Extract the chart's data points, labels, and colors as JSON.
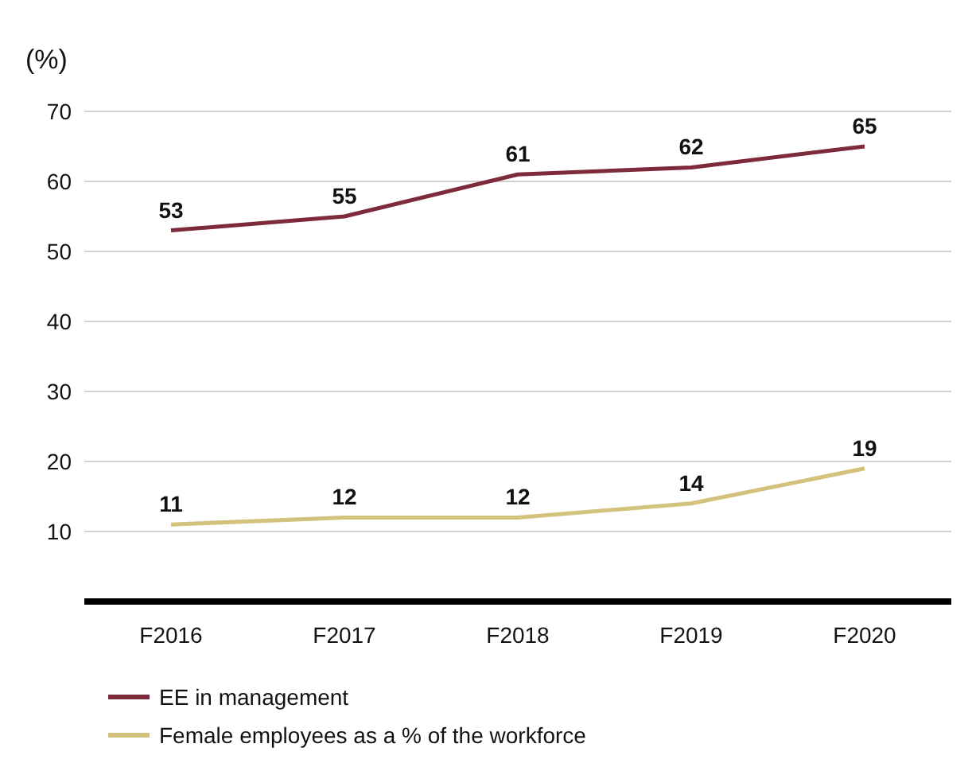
{
  "chart_data": {
    "type": "line",
    "ylabel": "(%)",
    "categories": [
      "F2016",
      "F2017",
      "F2018",
      "F2019",
      "F2020"
    ],
    "series": [
      {
        "name": "EE in management",
        "color": "#7d2a3b",
        "values": [
          53,
          55,
          61,
          62,
          65
        ]
      },
      {
        "name": "Female employees as a % of the workforce",
        "color": "#d2c27c",
        "values": [
          11,
          12,
          12,
          14,
          19
        ]
      }
    ],
    "ylim": [
      0,
      70
    ],
    "yticks": [
      {
        "value": 0,
        "label": null
      },
      10,
      20,
      30,
      40,
      50,
      60,
      70
    ],
    "grid": "y",
    "legend": "bottom left",
    "data_labels": true,
    "marker": "none",
    "line_style": "solid"
  }
}
